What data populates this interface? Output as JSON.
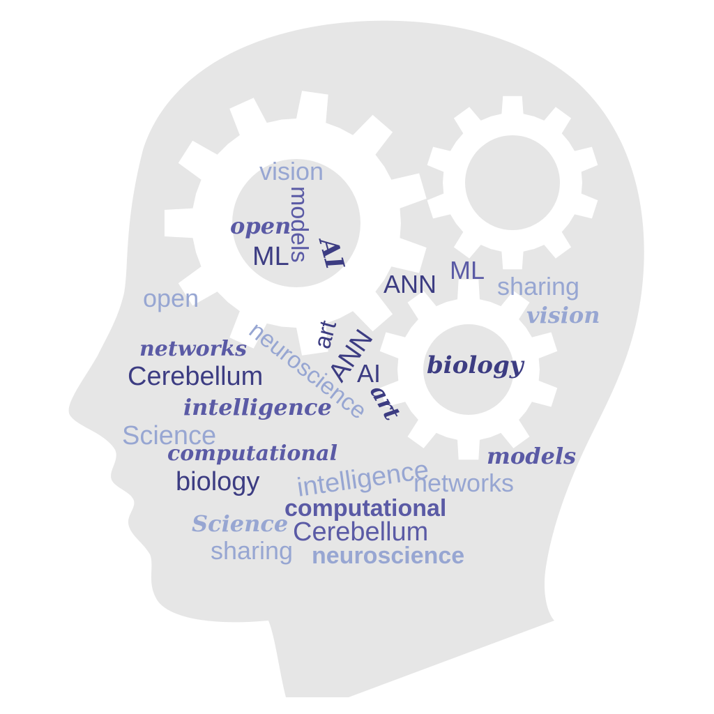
{
  "colors": {
    "head": "#e6e6e6",
    "gear": "#ffffff",
    "dark": "#3c3c82",
    "mid": "#5a5aa5",
    "light": "#97a6d2"
  },
  "words": {
    "vision_top": "vision",
    "models_vert": "models",
    "open_script": "open",
    "ml_gear": "ML",
    "ai_script": "AI",
    "ann_top": "ANN",
    "ml_top": "ML",
    "sharing_right": "sharing",
    "vision_script": "vision",
    "open_left": "open",
    "networks_script": "networks",
    "neuroscience_diag": "neuroscience",
    "art_up": "art",
    "ann_diag": "ANN",
    "biology_script": "biology",
    "cerebellum_left": "Cerebellum",
    "ai_mid": "AI",
    "art_script": "art",
    "intelligence_script": "intelligence",
    "science_left": "Science",
    "computational_script": "computational",
    "models_script": "models",
    "intelligence_arc": "intelligence",
    "biology_mid": "biology",
    "networks_right": "networks",
    "computational_bold": "computational",
    "science_script": "Science",
    "cerebellum_bottom": "Cerebellum",
    "sharing_bottom": "sharing",
    "neuroscience_bottom": "neuroscience"
  }
}
